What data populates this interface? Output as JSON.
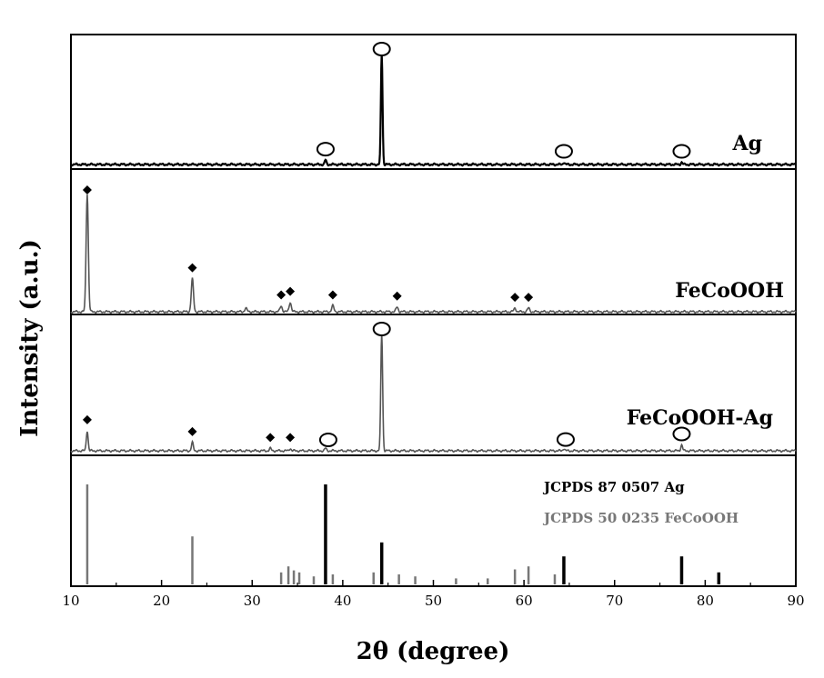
{
  "chart_data": {
    "type": "line",
    "title": "",
    "xlabel": "2θ (degree)",
    "ylabel": "Intensity (a.u.)",
    "xlim": [
      10,
      90
    ],
    "xticks": [
      10,
      20,
      30,
      40,
      50,
      60,
      70,
      80,
      90
    ],
    "grid": false,
    "series": [
      {
        "name": "Ag",
        "color": "#000000",
        "peaks": [
          {
            "x": 38.1,
            "h": 0.04
          },
          {
            "x": 44.3,
            "h": 1.0
          },
          {
            "x": 64.4,
            "h": 0.02
          },
          {
            "x": 77.4,
            "h": 0.02
          }
        ],
        "markers": [
          {
            "x": 38.1,
            "symbol": "circle"
          },
          {
            "x": 44.3,
            "symbol": "circle"
          },
          {
            "x": 64.4,
            "symbol": "circle"
          },
          {
            "x": 77.4,
            "symbol": "circle"
          }
        ]
      },
      {
        "name": "FeCoOOH",
        "color": "#555555",
        "peaks": [
          {
            "x": 11.8,
            "h": 1.0
          },
          {
            "x": 23.4,
            "h": 0.28
          },
          {
            "x": 29.3,
            "h": 0.03
          },
          {
            "x": 33.2,
            "h": 0.05
          },
          {
            "x": 34.2,
            "h": 0.08
          },
          {
            "x": 38.9,
            "h": 0.05
          },
          {
            "x": 46.0,
            "h": 0.04
          },
          {
            "x": 59.0,
            "h": 0.03
          },
          {
            "x": 60.5,
            "h": 0.03
          }
        ],
        "markers": [
          {
            "x": 11.8,
            "symbol": "diamond"
          },
          {
            "x": 23.4,
            "symbol": "diamond"
          },
          {
            "x": 33.2,
            "symbol": "diamond"
          },
          {
            "x": 34.2,
            "symbol": "diamond"
          },
          {
            "x": 38.9,
            "symbol": "diamond"
          },
          {
            "x": 46.0,
            "symbol": "diamond"
          },
          {
            "x": 59.0,
            "symbol": "diamond"
          },
          {
            "x": 60.5,
            "symbol": "diamond"
          }
        ]
      },
      {
        "name": "FeCoOOH-Ag",
        "color": "#555555",
        "peaks": [
          {
            "x": 11.8,
            "h": 0.17
          },
          {
            "x": 23.4,
            "h": 0.07
          },
          {
            "x": 32.0,
            "h": 0.02
          },
          {
            "x": 34.2,
            "h": 0.02
          },
          {
            "x": 38.1,
            "h": 0.02
          },
          {
            "x": 44.3,
            "h": 1.0
          },
          {
            "x": 64.4,
            "h": 0.02
          },
          {
            "x": 77.4,
            "h": 0.05
          }
        ],
        "markers": [
          {
            "x": 11.8,
            "symbol": "diamond"
          },
          {
            "x": 23.4,
            "symbol": "diamond"
          },
          {
            "x": 32.0,
            "symbol": "diamond"
          },
          {
            "x": 34.2,
            "symbol": "diamond"
          },
          {
            "x": 38.4,
            "symbol": "circle"
          },
          {
            "x": 44.3,
            "symbol": "circle"
          },
          {
            "x": 64.6,
            "symbol": "circle"
          },
          {
            "x": 77.4,
            "symbol": "circle"
          }
        ]
      }
    ],
    "reference_patterns": [
      {
        "name": "JCPDS 87 0507 Ag",
        "color": "#000000",
        "lines": [
          {
            "x": 38.1,
            "h": 1.0
          },
          {
            "x": 44.3,
            "h": 0.42
          },
          {
            "x": 64.4,
            "h": 0.28
          },
          {
            "x": 77.4,
            "h": 0.28
          },
          {
            "x": 81.5,
            "h": 0.12
          }
        ]
      },
      {
        "name": "JCPDS 50 0235 FeCoOOH",
        "color": "#777777",
        "lines": [
          {
            "x": 11.8,
            "h": 1.0
          },
          {
            "x": 23.4,
            "h": 0.48
          },
          {
            "x": 33.2,
            "h": 0.12
          },
          {
            "x": 34.0,
            "h": 0.18
          },
          {
            "x": 34.6,
            "h": 0.14
          },
          {
            "x": 35.2,
            "h": 0.12
          },
          {
            "x": 36.8,
            "h": 0.08
          },
          {
            "x": 38.9,
            "h": 0.1
          },
          {
            "x": 43.4,
            "h": 0.12
          },
          {
            "x": 46.2,
            "h": 0.1
          },
          {
            "x": 48.0,
            "h": 0.08
          },
          {
            "x": 52.5,
            "h": 0.06
          },
          {
            "x": 56.0,
            "h": 0.06
          },
          {
            "x": 59.0,
            "h": 0.15
          },
          {
            "x": 60.5,
            "h": 0.18
          },
          {
            "x": 63.4,
            "h": 0.1
          }
        ]
      }
    ]
  }
}
